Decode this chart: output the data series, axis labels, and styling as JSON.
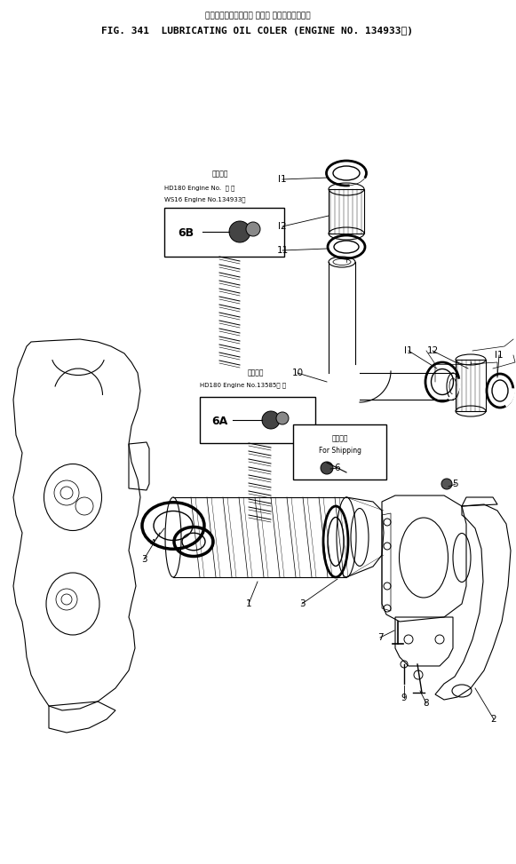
{
  "title_jp": "ルーブリケーティング オイル クーラ　適用号機",
  "title_en": "FIG. 341  LUBRICATING OIL COLER (ENGINE NO. 134933－)",
  "bg_color": "#ffffff",
  "fig_width": 5.81,
  "fig_height": 9.73,
  "label_6b_header": "適用号機",
  "label_6b_line1": "HD180 Engine No.  ・ ～",
  "label_6b_line2": "WS16 Engine No.134933～",
  "label_6a_header": "適用号機",
  "label_6a_line1": "HD180 Engine No.13585～ ．",
  "label_6_line1": "運搜部品",
  "label_6_line2": "For Shipping"
}
